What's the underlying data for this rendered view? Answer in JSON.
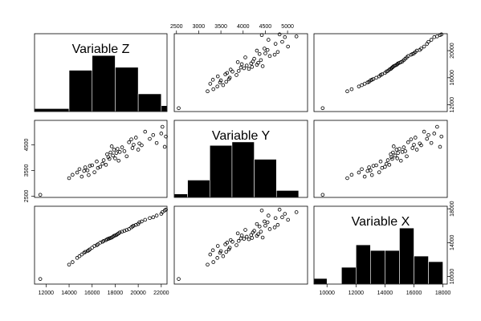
{
  "chart_data": {
    "type": "scatter",
    "plot_kind": "scatterplot-matrix",
    "variables": [
      "Variable Z",
      "Variable Y",
      "Variable X"
    ],
    "axes": {
      "Variable Z": {
        "range": [
          11000,
          22500
        ],
        "ticks": [
          12000,
          14000,
          16000,
          18000,
          20000,
          22000
        ],
        "tick_labels": [
          "12000",
          "14000",
          "16000",
          "18000",
          "20000",
          "22000"
        ]
      },
      "Variable Y": {
        "range": [
          2450,
          5450
        ],
        "ticks": [
          2500,
          3000,
          3500,
          4000,
          4500,
          5000
        ],
        "tick_labels": [
          "2500",
          "3000",
          "3500",
          "4000",
          "4500",
          "5000"
        ]
      },
      "Variable X": {
        "range": [
          9100,
          18300
        ],
        "ticks": [
          10000,
          12000,
          14000,
          16000,
          18000
        ],
        "tick_labels": [
          "10000",
          "12000",
          "14000",
          "16000",
          "18000"
        ]
      }
    },
    "axis_label_ticks": {
      "top": {
        "variable": "Variable Y",
        "values": [
          2500,
          3000,
          3500,
          4000,
          4500,
          5000
        ],
        "labels": [
          "2500",
          "3000",
          "3500",
          "4000",
          "4500",
          "5000"
        ]
      },
      "right": {
        "variable": "Variable Z",
        "values": [
          12000,
          16000,
          20000
        ],
        "labels": [
          "12000",
          "16000",
          "20000"
        ]
      },
      "left": {
        "variable": "Variable Y",
        "values": [
          2500,
          3500,
          4500
        ],
        "labels": [
          "2500",
          "3500",
          "4500"
        ]
      },
      "bottom": {
        "variable": "Variable Z",
        "values": [
          12000,
          14000,
          16000,
          18000,
          20000,
          22000
        ],
        "labels": [
          "12000",
          "14000",
          "16000",
          "18000",
          "20000",
          "22000"
        ]
      },
      "right_bottom": {
        "variable": "Variable X",
        "values": [
          10000,
          14000,
          18000
        ],
        "labels": [
          "10000",
          "14000",
          "18000"
        ]
      },
      "bottom_right": {
        "variable": "Variable X",
        "values": [
          10000,
          12000,
          14000,
          16000,
          18000
        ],
        "labels": [
          "10000",
          "12000",
          "14000",
          "16000",
          "18000"
        ]
      }
    },
    "histograms": {
      "Variable Z": {
        "bin_edges": [
          11000,
          14000,
          16000,
          18000,
          20000,
          22000,
          23000
        ],
        "counts": [
          1,
          14,
          19,
          15,
          6,
          2
        ]
      },
      "Variable Y": {
        "bin_edges": [
          2250,
          2750,
          3250,
          3750,
          4250,
          4750,
          5250,
          5750
        ],
        "counts": [
          1,
          5,
          15,
          16,
          11,
          2,
          0
        ]
      },
      "Variable X": {
        "bin_edges": [
          9000,
          10000,
          11000,
          12000,
          13000,
          14000,
          15000,
          16000,
          17000,
          18000
        ],
        "counts": [
          1,
          0,
          3,
          7,
          6,
          6,
          10,
          5,
          4
        ]
      }
    },
    "observations": {
      "Variable Z": [
        11500,
        14000,
        14300,
        14700,
        14900,
        15100,
        15300,
        15400,
        15600,
        15700,
        15800,
        16000,
        16200,
        16400,
        16500,
        16700,
        16900,
        17000,
        17200,
        17300,
        17400,
        17500,
        17600,
        17700,
        17800,
        17900,
        18000,
        18100,
        18200,
        18300,
        18400,
        18600,
        18800,
        19000,
        19200,
        19400,
        19500,
        19600,
        19800,
        20000,
        20100,
        20300,
        20600,
        21000,
        21300,
        21600,
        22000,
        22100,
        22300,
        22400
      ],
      "Variable Y": [
        2550,
        3200,
        3330,
        3420,
        3550,
        3260,
        3480,
        3620,
        3500,
        3320,
        3680,
        3700,
        3430,
        3850,
        3600,
        3640,
        3760,
        3900,
        3720,
        4130,
        4020,
        3950,
        4200,
        4440,
        4080,
        4310,
        3970,
        4180,
        4340,
        3880,
        4220,
        4400,
        4250,
        4050,
        4600,
        4710,
        4370,
        4500,
        4780,
        4310,
        4550,
        4480,
        5010,
        4730,
        4880,
        4570,
        4940,
        5200,
        4420,
        4820
      ],
      "Variable X": [
        9700,
        11400,
        11700,
        12200,
        12400,
        12600,
        12800,
        12900,
        13000,
        13100,
        13200,
        13400,
        13600,
        13700,
        13800,
        14000,
        14100,
        14200,
        14300,
        14400,
        14450,
        14500,
        14550,
        14600,
        14700,
        14800,
        14850,
        14900,
        15000,
        15100,
        15200,
        15300,
        15400,
        15500,
        15600,
        15800,
        15900,
        16000,
        16100,
        16200,
        16400,
        16500,
        16700,
        16900,
        17000,
        17200,
        17400,
        17600,
        17800,
        17900
      ]
    },
    "grid": false,
    "legend": "none"
  }
}
